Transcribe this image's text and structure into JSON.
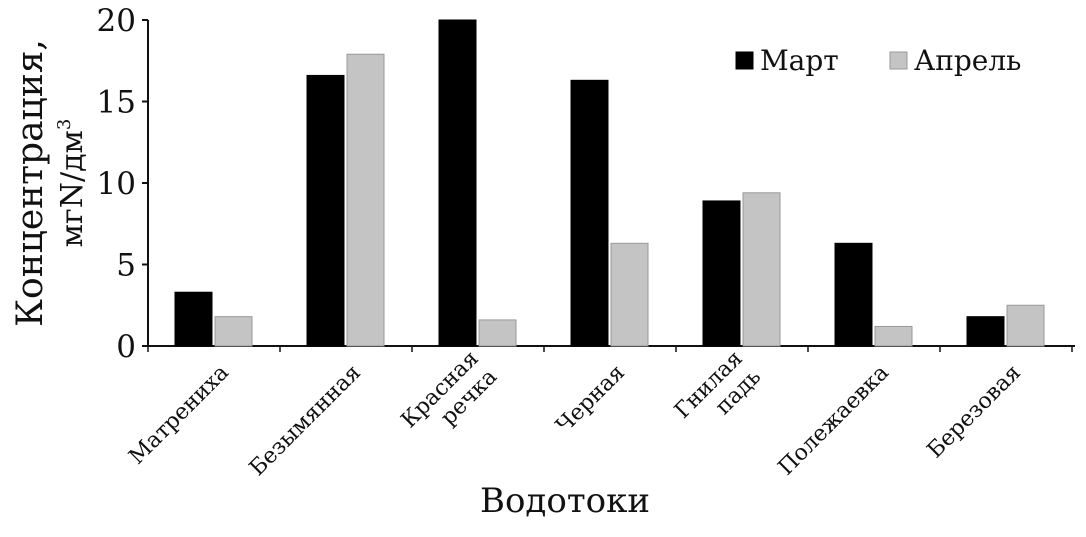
{
  "chart_data": {
    "type": "bar",
    "title": "",
    "xlabel": "Водотоки",
    "ylabel_line1": "Концентрация,",
    "ylabel_line2": "мгN/дм",
    "ylabel_sup": "3",
    "ylim": [
      0,
      20
    ],
    "yticks": [
      "0",
      "5",
      "10",
      "15",
      "20"
    ],
    "categories": [
      [
        "Матрениха"
      ],
      [
        "Безымянная"
      ],
      [
        "Красная",
        "речка"
      ],
      [
        "Черная"
      ],
      [
        "Гнилая",
        "падь"
      ],
      [
        "Полежаевка"
      ],
      [
        "Березовая"
      ]
    ],
    "series": [
      {
        "name": "Март",
        "color": "#000000",
        "values": [
          3.3,
          16.6,
          20.0,
          16.3,
          8.9,
          6.3,
          1.8
        ]
      },
      {
        "name": "Апрель",
        "color": "#c4c4c4",
        "values": [
          1.8,
          17.9,
          1.6,
          6.3,
          9.4,
          1.2,
          2.5
        ]
      }
    ],
    "legend_position": "top-right",
    "grid": false
  }
}
